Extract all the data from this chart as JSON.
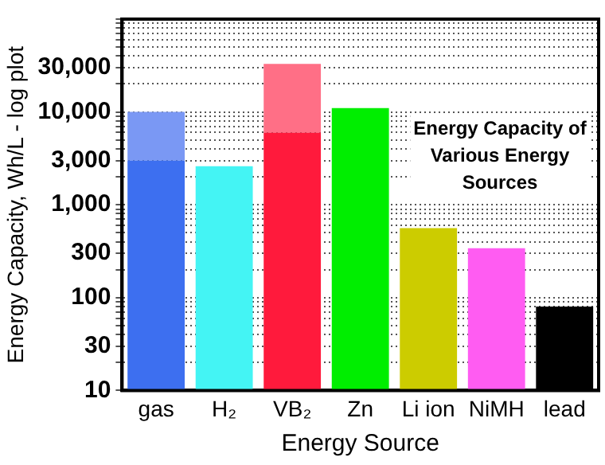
{
  "chart_data": {
    "type": "bar",
    "stacked": true,
    "title": "Energy Capacity of Various Energy Sources",
    "xlabel": "Energy Source",
    "ylabel": "Energy Capacity, Wh/L - log plot",
    "categories": [
      "gas",
      "H₂",
      "VB₂",
      "Zn",
      "Li ion",
      "NiMH",
      "lead"
    ],
    "series": [
      {
        "values": [
          3000,
          2600,
          6000,
          11000,
          560,
          340,
          80
        ],
        "colors": [
          "#3d6ff0",
          "#44f4f4",
          "#ff1a3c",
          "#00ee00",
          "#cccc00",
          "#ff5cf2",
          "#000000"
        ]
      },
      {
        "values": [
          7000,
          null,
          27000,
          null,
          null,
          null,
          null
        ],
        "colors": [
          "#7a98f4",
          "#44f4f4",
          "#ff6f86",
          "#00ee00",
          "#cccc00",
          "#ff5cf2",
          "#000000"
        ]
      }
    ],
    "log": "y",
    "ylim": [
      10,
      100000
    ],
    "yticks": [
      10,
      {
        "value": 20,
        "label": null
      },
      30,
      {
        "value": 40,
        "label": null
      },
      {
        "value": 50,
        "label": null
      },
      {
        "value": 60,
        "label": null
      },
      {
        "value": 70,
        "label": null
      },
      {
        "value": 80,
        "label": null
      },
      {
        "value": 90,
        "label": null
      },
      100,
      {
        "value": 200,
        "label": null
      },
      300,
      {
        "value": 400,
        "label": null
      },
      {
        "value": 500,
        "label": null
      },
      {
        "value": 600,
        "label": null
      },
      {
        "value": 700,
        "label": null
      },
      {
        "value": 800,
        "label": null
      },
      {
        "value": 900,
        "label": null
      },
      {
        "value": 1000,
        "label": "1,000"
      },
      {
        "value": 2000,
        "label": null
      },
      {
        "value": 3000,
        "label": "3,000"
      },
      {
        "value": 4000,
        "label": null
      },
      {
        "value": 5000,
        "label": null
      },
      {
        "value": 6000,
        "label": null
      },
      {
        "value": 7000,
        "label": null
      },
      {
        "value": 8000,
        "label": null
      },
      {
        "value": 9000,
        "label": null
      },
      {
        "value": 10000,
        "label": "10,000"
      },
      {
        "value": 20000,
        "label": null
      },
      {
        "value": 30000,
        "label": "30,000"
      },
      {
        "value": 40000,
        "label": null
      },
      {
        "value": 50000,
        "label": null
      },
      {
        "value": 60000,
        "label": null
      },
      {
        "value": 70000,
        "label": null
      },
      {
        "value": 80000,
        "label": null
      },
      {
        "value": 90000,
        "label": null
      },
      {
        "value": 100000,
        "label": null
      }
    ],
    "grid": "y",
    "legend": false
  }
}
